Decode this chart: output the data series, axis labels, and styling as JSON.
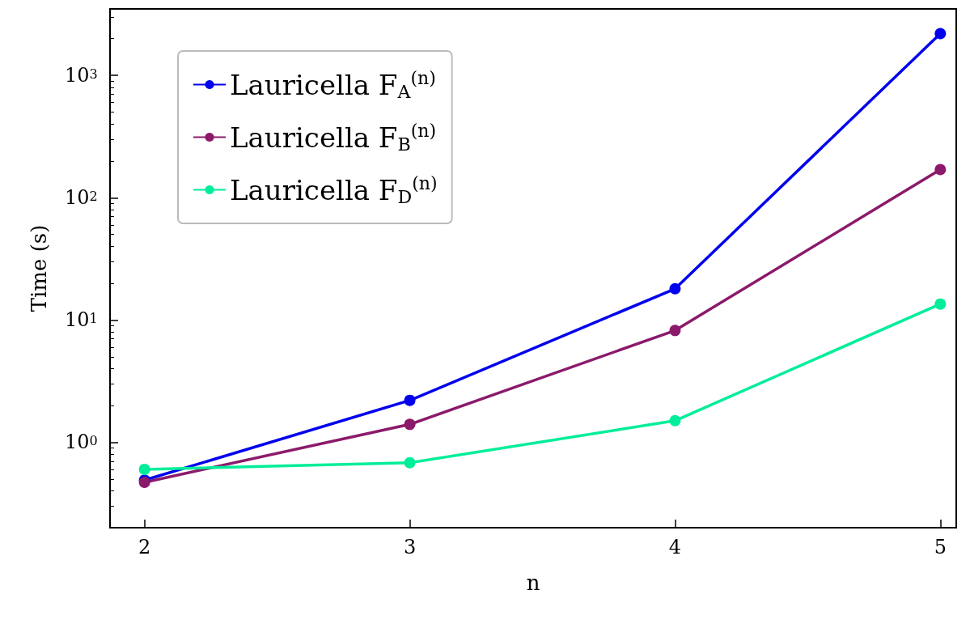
{
  "chart_data": {
    "type": "line",
    "xlabel": "n",
    "ylabel": "Time (s)",
    "x": [
      2,
      3,
      4,
      5
    ],
    "series": [
      {
        "name": "Lauricella F$_{A}$$^{(n)}$",
        "color": "#0000ee",
        "values": [
          0.49,
          2.2,
          18,
          2200
        ]
      },
      {
        "name": "Lauricella F$_{B}$$^{(n)}$",
        "color": "#8b1a6b",
        "values": [
          0.47,
          1.4,
          8.2,
          170
        ]
      },
      {
        "name": "Lauricella F$_{D}$$^{(n)}$",
        "color": "#00ee99",
        "values": [
          0.6,
          0.68,
          1.5,
          13.5
        ]
      }
    ],
    "xlim": [
      1.87,
      5.06
    ],
    "xticks": [
      2,
      3,
      4,
      5
    ],
    "ylim": [
      0.2,
      3500
    ],
    "yticks": [
      {
        "value": 1,
        "label": "10$^{0}$"
      },
      {
        "value": 10,
        "label": "10$^{1}$"
      },
      {
        "value": 100,
        "label": "10$^{2}$"
      },
      {
        "value": 1000,
        "label": "10$^{3}$"
      }
    ],
    "log": "y",
    "grid": false,
    "legend": "top left",
    "marker": "circle",
    "line_style": "solid"
  }
}
